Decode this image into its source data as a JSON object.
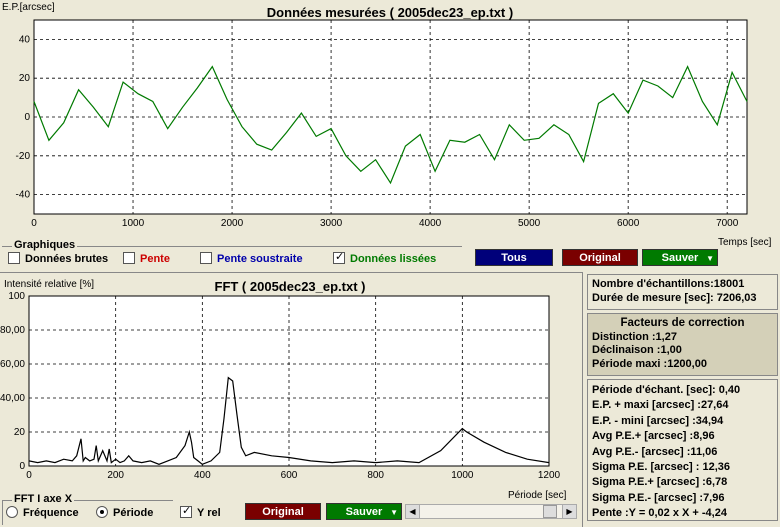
{
  "top_chart": {
    "ylabel": "E.P.[arcsec]",
    "title": "Données mesurées ( 2005dec23_ep.txt )",
    "xlabel": "Temps [sec]",
    "yticks": [
      "40",
      "20",
      "0",
      "-20",
      "-40"
    ],
    "xticks": [
      "0",
      "1000",
      "2000",
      "3000",
      "4000",
      "5000",
      "6000",
      "7000"
    ],
    "chart_data": {
      "type": "line",
      "xlim": [
        0,
        7200
      ],
      "ylim": [
        -50,
        50
      ],
      "grid": true,
      "series": [
        {
          "color": "#007a00",
          "x": [
            0,
            150,
            300,
            450,
            600,
            750,
            900,
            1050,
            1200,
            1350,
            1500,
            1650,
            1800,
            1950,
            2100,
            2250,
            2400,
            2550,
            2700,
            2850,
            3000,
            3150,
            3300,
            3450,
            3600,
            3750,
            3900,
            4050,
            4200,
            4350,
            4500,
            4650,
            4800,
            4950,
            5100,
            5250,
            5400,
            5550,
            5700,
            5850,
            6000,
            6150,
            6300,
            6450,
            6600,
            6750,
            6900,
            7050,
            7200
          ],
          "y": [
            8,
            -12,
            -3,
            14,
            5,
            -5,
            18,
            12,
            8,
            -6,
            5,
            15,
            26,
            9,
            -5,
            -14,
            -17,
            -8,
            2,
            -10,
            -6,
            -20,
            -28,
            -22,
            -34,
            -15,
            -9,
            -28,
            -12,
            -13,
            -9,
            -22,
            -4,
            -12,
            -11,
            -4,
            -9,
            -23,
            7,
            12,
            2,
            19,
            16,
            10,
            26,
            8,
            -4,
            23,
            8
          ]
        }
      ]
    }
  },
  "graphiques": {
    "label": "Graphiques",
    "items": [
      {
        "label": "Données brutes",
        "checked": false,
        "color": "#000000"
      },
      {
        "label": "Pente",
        "checked": false,
        "color": "#cc0000"
      },
      {
        "label": "Pente soustraite",
        "checked": false,
        "color": "#0000aa"
      },
      {
        "label": "Données lissées",
        "checked": true,
        "color": "#007a00"
      }
    ]
  },
  "buttons": {
    "tous": "Tous",
    "original": "Original",
    "sauver": "Sauver",
    "original2": "Original",
    "sauver2": "Sauver"
  },
  "fft_chart": {
    "ylabel": "Intensité relative [%]",
    "title": "FFT ( 2005dec23_ep.txt )",
    "xlabel": "Période [sec]",
    "yticks": [
      "100",
      "80,00",
      "60,00",
      "40,00",
      "20",
      "0"
    ],
    "xticks": [
      "0",
      "200",
      "400",
      "600",
      "800",
      "1000",
      "1200"
    ],
    "chart_data": {
      "type": "line",
      "xlim": [
        0,
        1200
      ],
      "ylim": [
        0,
        100
      ],
      "grid": true,
      "series": [
        {
          "color": "#000000",
          "x": [
            0,
            20,
            40,
            60,
            80,
            100,
            110,
            120,
            125,
            130,
            140,
            150,
            155,
            160,
            170,
            180,
            185,
            190,
            200,
            210,
            220,
            230,
            240,
            260,
            280,
            300,
            320,
            340,
            360,
            370,
            375,
            380,
            390,
            400,
            420,
            440,
            450,
            460,
            470,
            480,
            490,
            500,
            520,
            560,
            600,
            650,
            700,
            750,
            800,
            850,
            900,
            950,
            1000,
            1010,
            1050,
            1100,
            1150,
            1200
          ],
          "y": [
            3,
            2,
            3,
            2,
            4,
            3,
            6,
            16,
            3,
            5,
            3,
            4,
            12,
            3,
            9,
            3,
            10,
            2,
            4,
            2,
            3,
            6,
            3,
            2,
            3,
            1,
            3,
            5,
            12,
            20,
            14,
            5,
            3,
            1,
            3,
            8,
            28,
            52,
            50,
            30,
            11,
            6,
            8,
            6,
            5,
            3,
            2,
            3,
            2,
            3,
            2,
            9,
            22,
            20,
            14,
            8,
            4,
            2
          ]
        }
      ]
    }
  },
  "fft_axis": {
    "label": "FFT I axe X",
    "options": [
      {
        "label": "Fréquence",
        "selected": false
      },
      {
        "label": "Période",
        "selected": true
      }
    ],
    "yrel": {
      "label": "Y rel",
      "checked": true
    }
  },
  "info1": {
    "lines": [
      "Nombre d'échantillons:18001",
      "Durée de mesure [sec]: 7206,03"
    ]
  },
  "info2": {
    "title": "Facteurs de correction",
    "lines": [
      "Distinction :1,27",
      "Déclinaison :1,00",
      "Période maxi :1200,00"
    ]
  },
  "info3": {
    "lines": [
      "Période d'échant. [sec]: 0,40",
      "E.P. + maxi [arcsec] :27,64",
      "E.P. - mini [arcsec] :34,94",
      "Avg P.E.+ [arcsec] :8,96",
      "Avg P.E.- [arcsec] :11,06",
      "Sigma P.E. [arcsec] : 12,36",
      "Sigma P.E.+ [arcsec] :6,78",
      "Sigma P.E.- [arcsec] :7,96",
      "Pente :Y = 0,02 x X + -4,24"
    ]
  },
  "colors": {
    "btn_blue": "#00007a",
    "btn_red": "#7a0000",
    "btn_green": "#007a00",
    "panel_bg": "#ece9d8",
    "info2_bg": "#d4d0b8"
  }
}
